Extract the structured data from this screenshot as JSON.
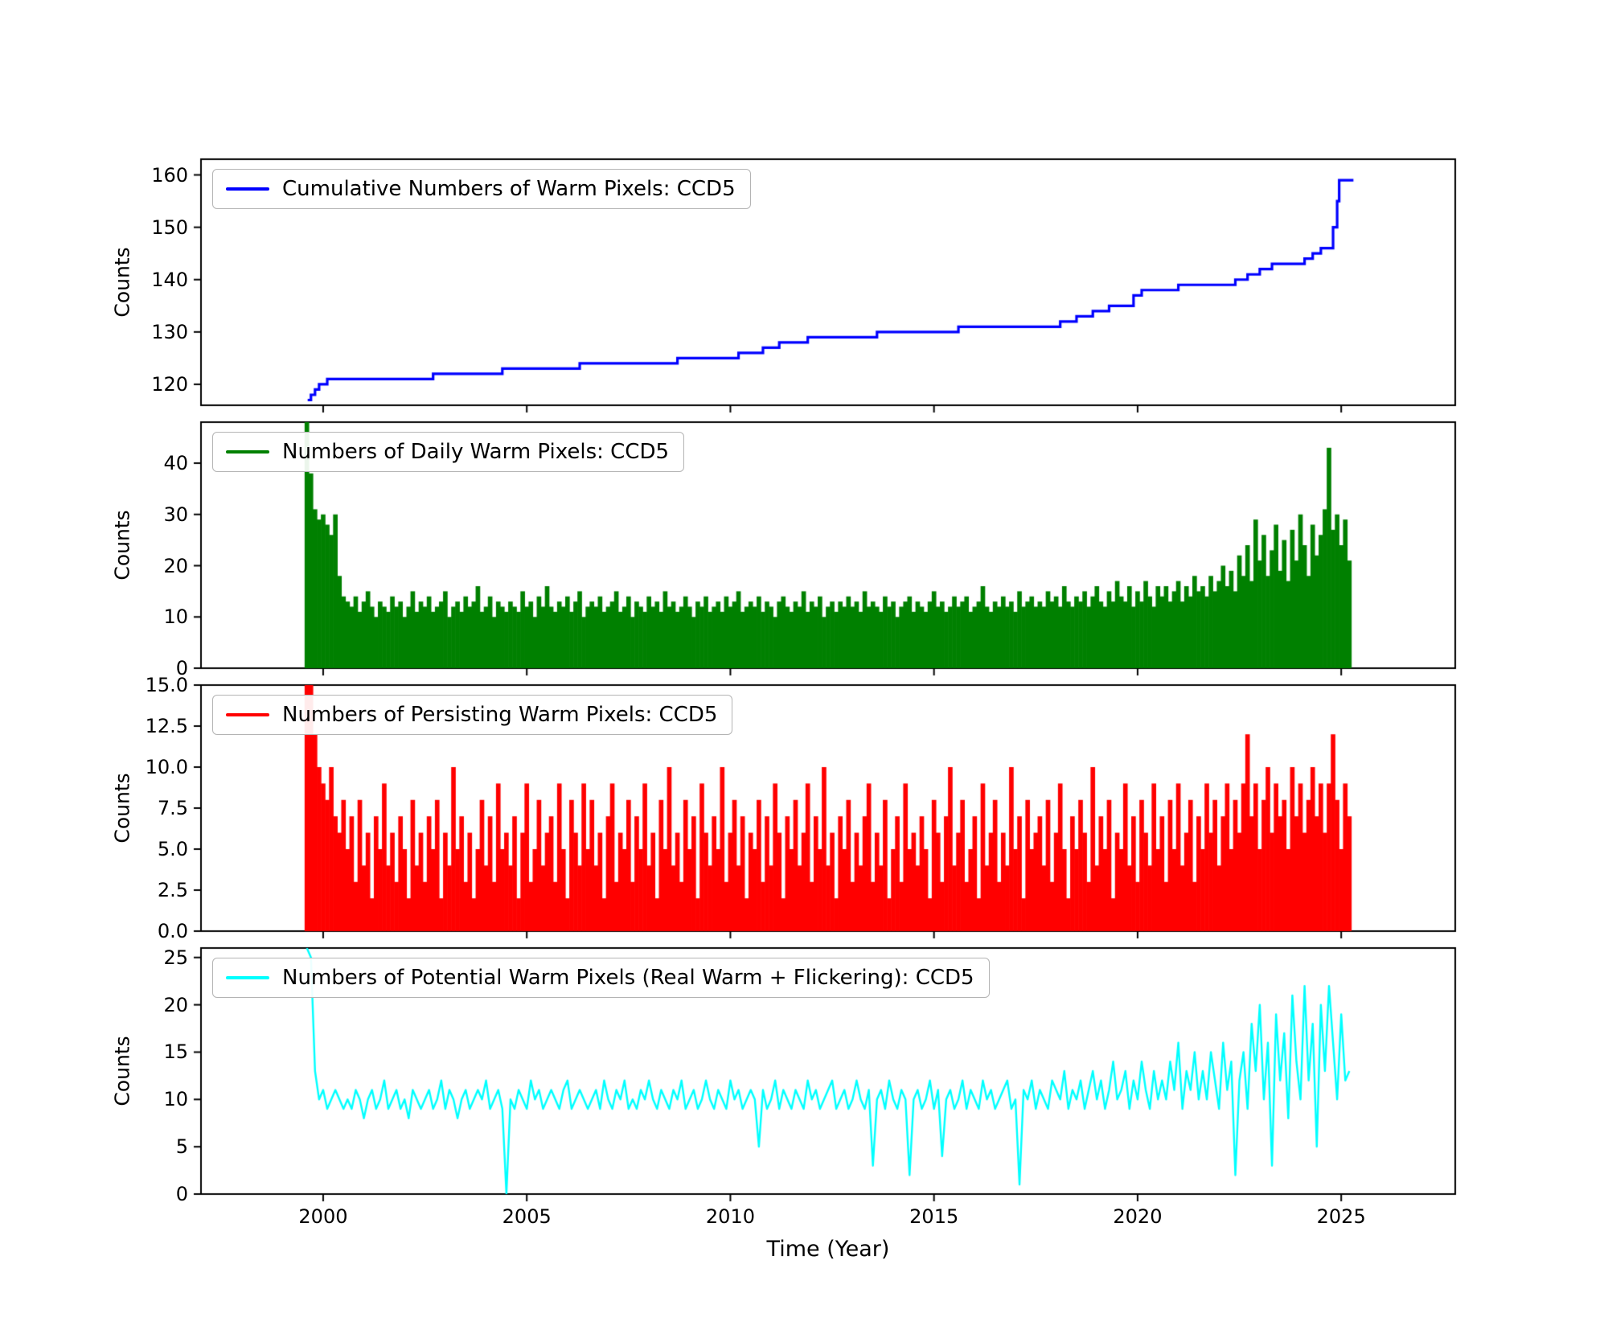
{
  "xaxis": {
    "label": "Time (Year)",
    "ticks": [
      2000,
      2005,
      2010,
      2015,
      2020,
      2025
    ],
    "xlim": [
      1997.0,
      2027.8
    ]
  },
  "chart_data": [
    {
      "type": "line",
      "subtype": "step",
      "name": "cumulative-warm-pixels",
      "legend": "Cumulative Numbers of Warm Pixels: CCD5",
      "ylabel": "Counts",
      "color": "#0000ff",
      "ylim": [
        116,
        163
      ],
      "yticks": [
        120,
        130,
        140,
        150,
        160
      ],
      "ytick_decimals": 0,
      "steps": [
        [
          1999.62,
          117
        ],
        [
          1999.7,
          118
        ],
        [
          1999.8,
          119
        ],
        [
          1999.9,
          120
        ],
        [
          2000.1,
          121
        ],
        [
          2002.7,
          122
        ],
        [
          2004.4,
          123
        ],
        [
          2006.3,
          124
        ],
        [
          2008.7,
          125
        ],
        [
          2010.2,
          126
        ],
        [
          2010.8,
          127
        ],
        [
          2011.2,
          128
        ],
        [
          2011.9,
          129
        ],
        [
          2013.6,
          130
        ],
        [
          2015.6,
          131
        ],
        [
          2018.1,
          132
        ],
        [
          2018.5,
          133
        ],
        [
          2018.9,
          134
        ],
        [
          2019.3,
          135
        ],
        [
          2019.9,
          137
        ],
        [
          2020.1,
          138
        ],
        [
          2021.0,
          139
        ],
        [
          2022.4,
          140
        ],
        [
          2022.7,
          141
        ],
        [
          2023.0,
          142
        ],
        [
          2023.3,
          143
        ],
        [
          2024.1,
          144
        ],
        [
          2024.3,
          145
        ],
        [
          2024.5,
          146
        ],
        [
          2024.8,
          150
        ],
        [
          2024.9,
          155
        ],
        [
          2024.95,
          159
        ],
        [
          2025.3,
          159
        ]
      ]
    },
    {
      "type": "bars",
      "name": "daily-warm-pixels",
      "legend": "Numbers of Daily Warm Pixels: CCD5",
      "ylabel": "Counts",
      "color": "#008000",
      "ylim": [
        0,
        48
      ],
      "yticks": [
        0,
        10,
        20,
        30,
        40
      ],
      "ytick_decimals": 0,
      "x_start": 1999.6,
      "x_step": 0.1,
      "values": "48,38,31,29,30,28,26,30,18,14,13,12,14,11,13,15,12,10,13,12,11,14,12,13,10,12,15,11,13,12,14,11,12,13,15,10,12,13,11,14,12,13,16,11,12,14,10,13,12,11,13,12,11,15,12,13,10,14,12,16,12,11,13,12,14,11,13,15,10,12,13,12,14,11,12,13,15,11,12,14,10,13,12,11,14,12,13,11,15,12,13,11,12,14,12,10,13,12,14,11,12,13,11,14,12,13,15,11,12,13,12,14,11,13,12,10,13,14,12,11,13,12,15,11,13,12,14,10,12,13,11,13,12,14,12,13,11,15,12,13,12,11,14,12,13,10,12,13,14,11,13,12,11,13,15,12,13,11,12,14,12,13,14,11,12,13,16,12,11,13,12,14,12,13,11,15,12,13,14,12,13,12,15,13,14,12,16,13,12,14,13,15,12,14,16,13,12,15,13,17,14,13,16,12,15,13,17,14,12,16,14,16,13,15,17,13,16,14,18,15,16,14,18,15,17,20,16,19,15,22,18,24,17,29,21,26,18,23,28,19,25,17,27,21,30,24,18,28,22,26,31,43,27,30,24,29,21"
    },
    {
      "type": "bars",
      "name": "persisting-warm-pixels",
      "legend": "Numbers of Persisting Warm Pixels: CCD5",
      "ylabel": "Counts",
      "color": "#ff0000",
      "ylim": [
        0,
        15
      ],
      "yticks": [
        0,
        2.5,
        5,
        7.5,
        10,
        12.5,
        15
      ],
      "ytick_decimals": 1,
      "x_start": 1999.6,
      "x_step": 0.1,
      "values": "15,15,12,10,9,8,10,7,6,8,5,7,3,8,4,6,2,7,5,9,4,6,3,7,5,2,8,4,6,3,7,5,8,2,6,4,10,5,7,3,6,2,5,8,4,7,3,9,5,6,4,7,2,6,9,3,5,8,4,6,7,3,9,5,2,8,6,4,9,5,8,4,6,2,7,9,3,6,5,8,3,7,5,9,4,6,2,8,5,10,4,6,3,8,5,7,2,9,6,4,7,5,10,3,6,8,4,7,2,6,5,8,3,7,4,9,6,2,7,5,8,4,6,9,3,7,5,10,4,6,2,7,5,8,3,6,4,7,9,3,6,4,8,2,5,7,3,9,5,6,4,7,5,2,8,6,3,7,10,4,6,8,3,5,7,2,9,4,6,8,3,6,4,10,5,7,2,8,5,6,7,4,8,3,6,9,5,2,7,5,8,6,3,10,4,7,5,8,2,6,5,9,4,7,3,8,6,4,9,5,7,3,8,5,9,4,6,8,3,7,5,9,6,8,4,7,9,5,8,6,9,12,7,9,5,8,10,6,9,7,8,5,10,7,9,6,8,10,7,9,6,9,12,8,5,9,7"
    },
    {
      "type": "line",
      "subtype": "plain",
      "name": "potential-warm-pixels",
      "legend": "Numbers of Potential Warm Pixels (Real Warm + Flickering): CCD5",
      "ylabel": "Counts",
      "color": "#00ffff",
      "ylim": [
        0,
        26
      ],
      "yticks": [
        0,
        5,
        10,
        15,
        20,
        25
      ],
      "ytick_decimals": 0,
      "x_start": 1999.6,
      "x_step": 0.1,
      "values": "26,25,13,10,11,9,10,11,10,9,10,9,11,10,8,10,11,9,10,12,9,10,11,9,10,8,11,10,9,10,11,9,10,12,9,11,10,8,10,11,9,10,11,10,12,9,10,11,9,0,10,9,11,10,9,12,10,11,9,10,11,10,9,11,12,9,10,11,10,9,10,11,9,12,10,9,11,10,12,9,10,9,11,10,12,10,9,11,10,9,11,10,12,9,10,11,9,10,12,10,9,11,10,9,12,10,11,9,10,11,10,5,11,9,10,12,9,11,10,9,11,10,9,12,10,11,9,10,11,12,9,10,11,9,10,12,10,9,11,3,10,11,9,12,10,9,11,10,2,10,11,9,10,12,9,11,4,10,11,9,10,12,9,11,10,9,12,10,11,9,10,11,12,9,10,1,11,10,12,9,11,10,9,12,11,10,13,9,11,10,12,9,11,13,10,12,9,11,14,10,11,13,9,12,10,14,11,9,13,10,12,10,14,11,16,9,13,11,15,10,13,10,15,12,9,16,11,14,2,12,15,9,18,13,20,10,16,3,19,12,17,8,21,14,10,22,12,18,5,20,13,22,16,10,19,12,13"
    }
  ]
}
